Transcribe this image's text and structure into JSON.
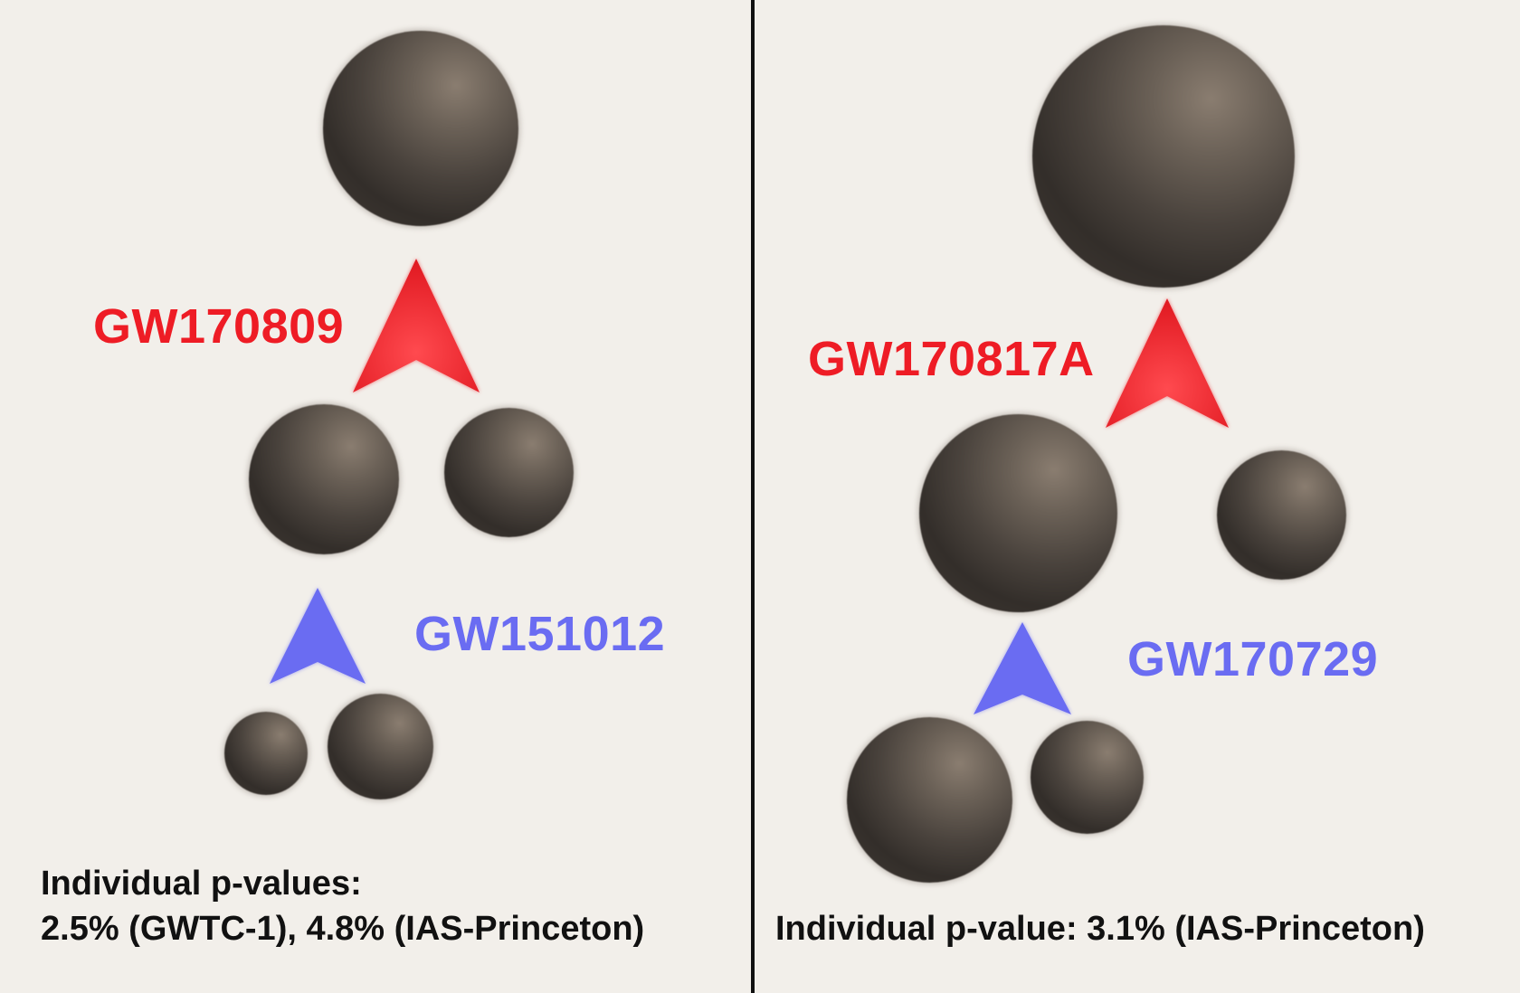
{
  "left_panel": {
    "upper_event": {
      "label": "GW170809",
      "color": "#ee1c25"
    },
    "lower_event": {
      "label": "GW151012",
      "color": "#6a6cf2"
    },
    "pvalue_lines": [
      "Individual p-values:",
      "2.5% (GWTC-1), 4.8% (IAS-Princeton)"
    ]
  },
  "right_panel": {
    "upper_event": {
      "label": "GW170817A",
      "color": "#ee1c25"
    },
    "lower_event": {
      "label": "GW170729",
      "color": "#6a6cf2"
    },
    "pvalue_lines": [
      "Individual p-value: 3.1% (IAS-Princeton)"
    ]
  },
  "colors": {
    "background": "#f2efea",
    "divider": "#111111",
    "sphere": "#3f3934",
    "arrow_red": "#ee1c25",
    "arrow_blue": "#6a6cf2"
  }
}
